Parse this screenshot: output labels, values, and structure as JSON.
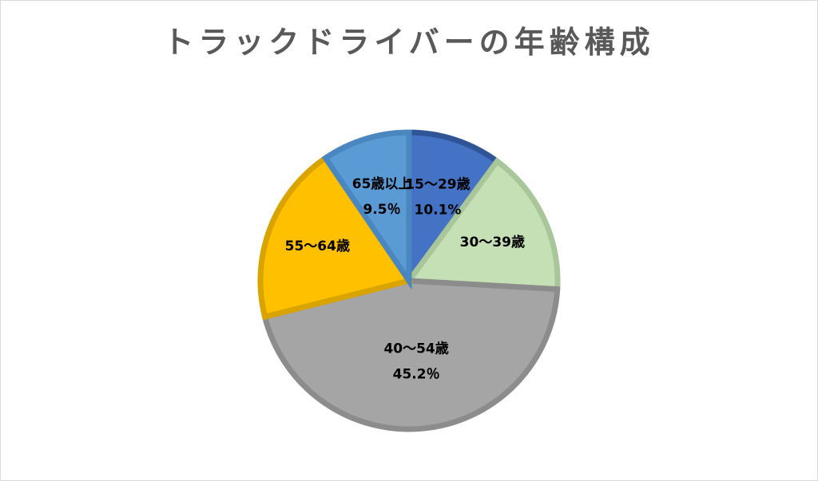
{
  "chart_data": {
    "type": "pie",
    "title": "トラックドライバーの年齢構成",
    "slices": [
      {
        "label": "15～29歳",
        "value": 10.1,
        "value_label": "10.1%",
        "color": "#4472C4",
        "border": "#2F5597"
      },
      {
        "label": "30～39歳",
        "value": 15.8,
        "value_label": "",
        "color": "#C5E0B4",
        "border": "#A9C59A"
      },
      {
        "label": "40～54歳",
        "value": 45.2,
        "value_label": "45.2％",
        "color": "#A5A5A5",
        "border": "#8C8C8C"
      },
      {
        "label": "55～64歳",
        "value": 19.4,
        "value_label": "",
        "color": "#FFC000",
        "border": "#D9A300"
      },
      {
        "label": "65歳以上",
        "value": 9.5,
        "value_label": "9.5％",
        "color": "#5B9BD5",
        "border": "#4A86BF"
      }
    ]
  }
}
